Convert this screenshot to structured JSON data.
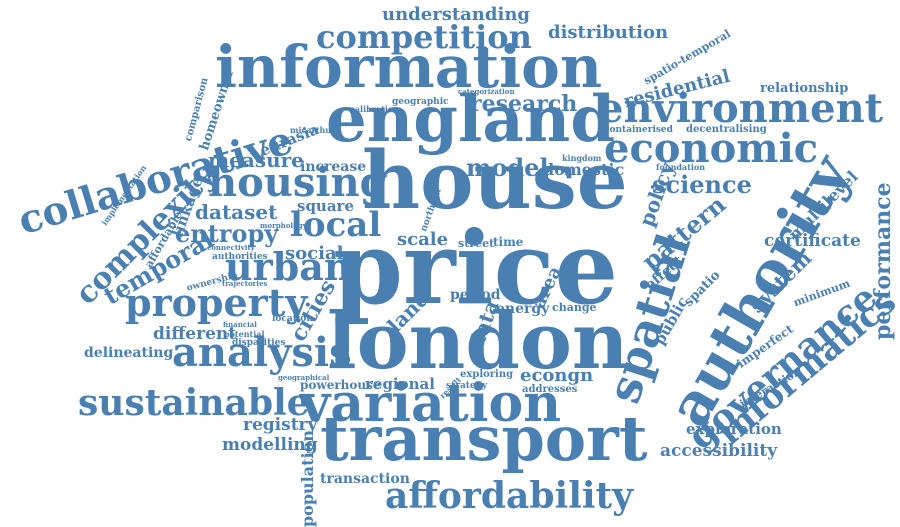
{
  "color": "#4a7fb2",
  "words": [
    "price",
    "house",
    "london",
    "england",
    "information",
    "transport",
    "variation",
    "authority",
    "spatial",
    "housing",
    "collaborative",
    "environment",
    "economic",
    "governance",
    "informatics",
    "analysis",
    "property",
    "urban",
    "sustainable",
    "affordability",
    "competition",
    "complexity",
    "temporal",
    "local",
    "entropy",
    "dataset",
    "measure",
    "research",
    "model",
    "science",
    "pattern",
    "policy",
    "system",
    "certificate",
    "performance",
    "multilevel",
    "distribution",
    "understanding",
    "residential",
    "relationship",
    "accessibility",
    "exploration",
    "registry",
    "modelling",
    "population",
    "transaction",
    "regional",
    "econgn",
    "cities",
    "different",
    "delineating",
    "social",
    "square",
    "scale",
    "energy",
    "period",
    "land",
    "data",
    "area",
    "domestic",
    "increase",
    "eurasia",
    "homeowner",
    "comparison",
    "linkage",
    "affordable",
    "ownership",
    "powerhouse",
    "geographic",
    "calibration",
    "decentralising",
    "containerised",
    "kingdom",
    "foundation",
    "public",
    "effect",
    "spatio",
    "imperfect",
    "minimum",
    "interaction",
    "exploring",
    "addresses",
    "change",
    "street",
    "time",
    "strategy",
    "result",
    "implementation",
    "spatio-temporal",
    "categorization",
    "authorities",
    "location",
    "potential",
    "disparities",
    "financial",
    "geographical",
    "trajectories",
    "connectivity",
    "morphology",
    "northern",
    "micarthur"
  ]
}
